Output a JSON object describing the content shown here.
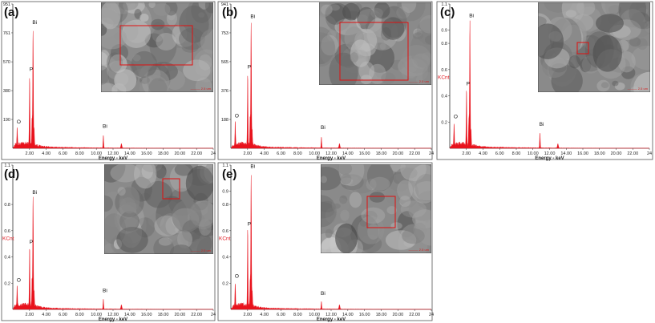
{
  "colors": {
    "spectrum": "#e8121c",
    "box": "#e01010",
    "frame": "#555555",
    "text": "#222222"
  },
  "chart_data": [
    {
      "panel": "(a)",
      "type": "area",
      "xlabel": "Energy - keV",
      "ylabel": "",
      "x_ticks": [
        "2.00",
        "4.00",
        "6.00",
        "8.00",
        "10.00",
        "12.00",
        "14.00",
        "16.00",
        "18.00",
        "20.00",
        "22.00",
        "24"
      ],
      "y_ticks": [
        "951",
        "761",
        "570",
        "380",
        "190"
      ],
      "xlim": [
        0,
        24
      ],
      "ylim": [
        0,
        951
      ],
      "peaks": [
        {
          "label": "Bi",
          "x": 2.42,
          "y": 770,
          "label_y": 820
        },
        {
          "label": "P",
          "x": 2.01,
          "y": 460,
          "label_y": 510
        },
        {
          "label": "O",
          "x": 0.52,
          "y": 120,
          "label_y": 165
        },
        {
          "label": "Bi",
          "x": 10.84,
          "y": 85,
          "label_y": 135
        }
      ],
      "inset_image": {
        "scale_bar": "——— 2.5 um"
      }
    },
    {
      "panel": "(b)",
      "type": "area",
      "xlabel": "Energy - keV",
      "ylabel": "",
      "x_ticks": [
        "2.00",
        "4.00",
        "6.00",
        "8.00",
        "10.00",
        "12.00",
        "14.00",
        "16.00",
        "18.00",
        "20.00",
        "22.00",
        "24"
      ],
      "y_ticks": [
        "941",
        "753",
        "565",
        "376",
        "188"
      ],
      "xlim": [
        0,
        24
      ],
      "ylim": [
        0,
        941
      ],
      "peaks": [
        {
          "label": "Bi",
          "x": 2.42,
          "y": 800,
          "label_y": 850
        },
        {
          "label": "P",
          "x": 2.01,
          "y": 470,
          "label_y": 520
        },
        {
          "label": "O",
          "x": 0.52,
          "y": 150,
          "label_y": 200
        },
        {
          "label": "Bi",
          "x": 10.84,
          "y": 75,
          "label_y": 125
        }
      ],
      "inset_image": {
        "scale_bar": "——— 2.5 um"
      }
    },
    {
      "panel": "(c)",
      "type": "area",
      "xlabel": "Energy - keV",
      "ylabel": "KCnt",
      "x_ticks": [
        "2.00",
        "4.00",
        "6.00",
        "8.00",
        "10.00",
        "12.00",
        "14.00",
        "16.00",
        "18.00",
        "20.00",
        "22.00",
        "24"
      ],
      "y_ticks": [
        "1.1",
        "0.9",
        "0.8",
        "0.6",
        "0.4",
        "0.2"
      ],
      "xlim": [
        0,
        24
      ],
      "ylim": [
        0,
        1.1
      ],
      "peaks": [
        {
          "label": "Bi",
          "x": 2.42,
          "y": 0.96,
          "label_y": 1.0
        },
        {
          "label": "P",
          "x": 2.01,
          "y": 0.43,
          "label_y": 0.48
        },
        {
          "label": "O",
          "x": 0.52,
          "y": 0.17,
          "label_y": 0.23
        },
        {
          "label": "Bi",
          "x": 10.84,
          "y": 0.12,
          "label_y": 0.17
        }
      ],
      "inset_image": {
        "scale_bar": "——— 2.5 um"
      }
    },
    {
      "panel": "(d)",
      "type": "area",
      "xlabel": "Energy - keV",
      "ylabel": "KCnt",
      "x_ticks": [
        "2.00",
        "4.00",
        "6.00",
        "8.00",
        "10.00",
        "12.00",
        "14.00",
        "16.00",
        "18.00",
        "20.00",
        "22.00",
        "24"
      ],
      "y_ticks": [
        "1.1",
        "0.8",
        "0.6",
        "0.4",
        "0.2"
      ],
      "xlim": [
        0,
        24
      ],
      "ylim": [
        0,
        1.1
      ],
      "peaks": [
        {
          "label": "Bi",
          "x": 2.42,
          "y": 0.85,
          "label_y": 0.88
        },
        {
          "label": "P",
          "x": 2.01,
          "y": 0.45,
          "label_y": 0.5
        },
        {
          "label": "O",
          "x": 0.52,
          "y": 0.15,
          "label_y": 0.21
        },
        {
          "label": "Bi",
          "x": 10.84,
          "y": 0.08,
          "label_y": 0.13
        }
      ],
      "inset_image": {
        "scale_bar": "——— 2.5 um"
      }
    },
    {
      "panel": "(e)",
      "type": "area",
      "xlabel": "Energy - keV",
      "ylabel": "KCnt",
      "x_ticks": [
        "2.00",
        "4.00",
        "6.00",
        "8.00",
        "10.00",
        "12.00",
        "14.00",
        "16.00",
        "18.00",
        "20.00",
        "22.00",
        "24"
      ],
      "y_ticks": [
        "1.1",
        "0.9",
        "0.8",
        "0.6",
        "0.4",
        "0.2"
      ],
      "xlim": [
        0,
        24
      ],
      "ylim": [
        0,
        1.1
      ],
      "peaks": [
        {
          "label": "Bi",
          "x": 2.42,
          "y": 1.0,
          "label_y": 1.08
        },
        {
          "label": "P",
          "x": 2.01,
          "y": 0.6,
          "label_y": 0.64
        },
        {
          "label": "O",
          "x": 0.52,
          "y": 0.18,
          "label_y": 0.24
        },
        {
          "label": "Bi",
          "x": 10.84,
          "y": 0.06,
          "label_y": 0.11
        }
      ],
      "inset_image": {
        "scale_bar": "——— 2.5 um"
      }
    }
  ]
}
